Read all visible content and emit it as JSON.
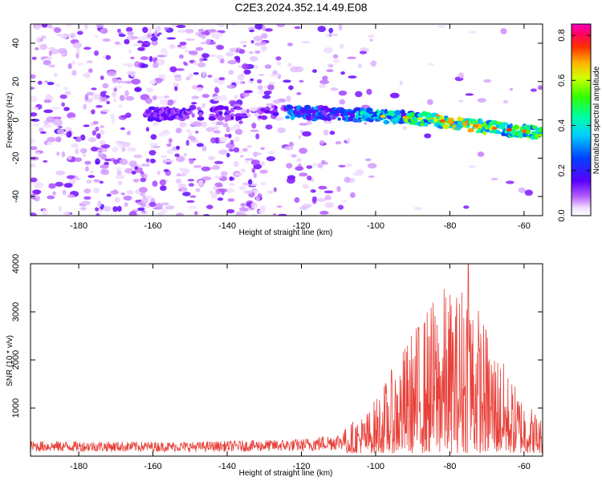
{
  "title": "C2E3.2024.352.14.49.E08",
  "chart_data": [
    {
      "type": "heatmap",
      "xlabel": "Height of straight line (km)",
      "ylabel": "Frequency (Hz)",
      "xlim": [
        -193,
        -55
      ],
      "ylim": [
        -50,
        50
      ],
      "xticks": [
        -180,
        -160,
        -140,
        -120,
        -100,
        -80,
        -60
      ],
      "yticks": [
        -40,
        -20,
        0,
        20,
        40
      ],
      "colorbar": {
        "label": "Normalized spectral amplitude",
        "range": [
          0,
          0.85
        ],
        "ticks": [
          0.0,
          0.2,
          0.4,
          0.6,
          0.8
        ],
        "colormap": "rainbow: white, light violet, purple, blue, cyan, green, yellow, orange, red, magenta"
      },
      "band": {
        "description": "narrow high-amplitude band drifting from about 3 Hz at -123 km to about -7 Hz at -56 km, peak amplitude ~0.8 near -80 to -75 km",
        "centerline": [
          {
            "x": -160,
            "y": 3
          },
          {
            "x": -123,
            "y": 4
          },
          {
            "x": -110,
            "y": 3
          },
          {
            "x": -100,
            "y": 2
          },
          {
            "x": -90,
            "y": 1
          },
          {
            "x": -80,
            "y": -1
          },
          {
            "x": -70,
            "y": -4
          },
          {
            "x": -60,
            "y": -6
          },
          {
            "x": -56,
            "y": -7
          }
        ]
      }
    },
    {
      "type": "line",
      "xlabel": "Height of straight line (km)",
      "ylabel": "SNR (10 * v/v)",
      "xlim": [
        -193,
        -55
      ],
      "ylim": [
        0,
        4000
      ],
      "xticks": [
        -180,
        -160,
        -140,
        -120,
        -100,
        -80,
        -60
      ],
      "yticks": [
        1000,
        2000,
        3000,
        4000
      ],
      "color": "#e8413a",
      "envelope": [
        {
          "x": -193,
          "base": 150,
          "peak": 320
        },
        {
          "x": -150,
          "base": 150,
          "peak": 300
        },
        {
          "x": -120,
          "base": 160,
          "peak": 360
        },
        {
          "x": -110,
          "base": 200,
          "peak": 480
        },
        {
          "x": -102,
          "base": 260,
          "peak": 900
        },
        {
          "x": -96,
          "base": 300,
          "peak": 1700
        },
        {
          "x": -90,
          "base": 350,
          "peak": 2600
        },
        {
          "x": -85,
          "base": 400,
          "peak": 3200
        },
        {
          "x": -82,
          "base": 400,
          "peak": 3500
        },
        {
          "x": -78,
          "base": 400,
          "peak": 3400
        },
        {
          "x": -75,
          "base": 400,
          "peak": 4000
        },
        {
          "x": -72,
          "base": 400,
          "peak": 3000
        },
        {
          "x": -68,
          "base": 380,
          "peak": 2300
        },
        {
          "x": -63,
          "base": 350,
          "peak": 1500
        },
        {
          "x": -58,
          "base": 300,
          "peak": 1000
        },
        {
          "x": -55,
          "base": 250,
          "peak": 700
        }
      ]
    }
  ]
}
